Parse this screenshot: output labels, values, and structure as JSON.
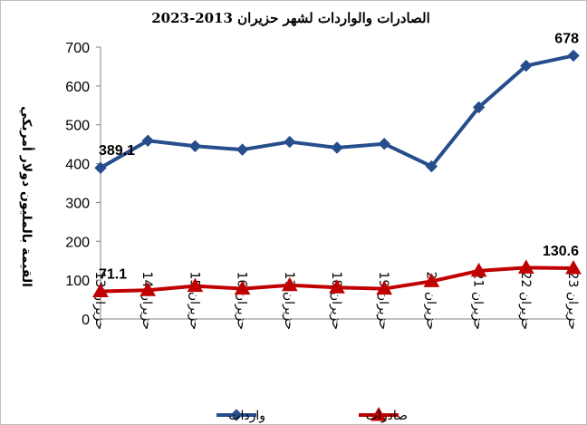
{
  "chart_data": {
    "type": "line",
    "title": "الصادرات والواردات لشهر حزيران 2013-2023",
    "ylabel": "القيمة بالمليون دولار أمريكي",
    "xlabel": "",
    "ylim": [
      0,
      700
    ],
    "yticks": [
      0,
      100,
      200,
      300,
      400,
      500,
      600,
      700
    ],
    "categories": [
      "حزيران 13",
      "حزيران 14",
      "حزيران 15",
      "حزيران 16",
      "حزيران 17",
      "حزيران 18",
      "حزيران 19",
      "حزيران 20",
      "حزيران 21",
      "حزيران 22",
      "حزيران 23"
    ],
    "series": [
      {
        "name": "واردات",
        "color": "#264d8c",
        "marker": "diamond",
        "values": [
          389.1,
          459,
          445,
          436,
          456,
          441,
          451,
          393,
          545,
          652,
          678
        ],
        "labels": {
          "0": "389.1",
          "10": "678"
        }
      },
      {
        "name": "صادرات",
        "color": "#c00000",
        "marker": "triangle",
        "values": [
          71.1,
          74,
          85,
          78,
          87,
          81,
          78,
          97,
          124,
          132,
          130.6
        ],
        "labels": {
          "0": "71.1",
          "10": "130.6"
        }
      }
    ],
    "grid": false,
    "legend": "bottom"
  }
}
